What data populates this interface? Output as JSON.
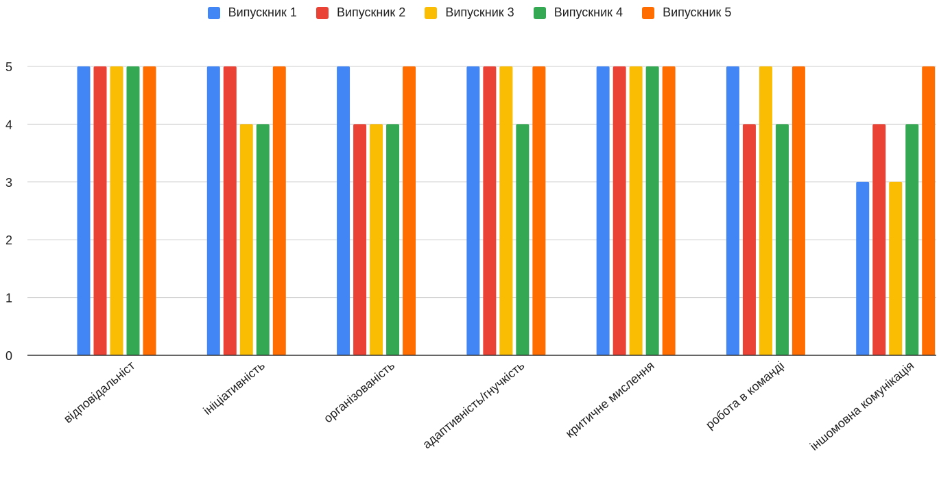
{
  "chart_data": {
    "type": "bar",
    "title": "",
    "xlabel": "",
    "ylabel": "",
    "ylim": [
      0,
      5
    ],
    "yticks": [
      0,
      1,
      2,
      3,
      4,
      5
    ],
    "grid": true,
    "legend_position": "top",
    "categories": [
      "відповідальніст",
      "ініціативність",
      "організованість",
      "адаптивність/гнучкість",
      "критичне мислення",
      "робота в команді",
      "іншомовна комунікація"
    ],
    "series": [
      {
        "name": "Випускник 1",
        "color": "#4285F4",
        "values": [
          5,
          5,
          5,
          5,
          5,
          5,
          3
        ]
      },
      {
        "name": "Випускник 2",
        "color": "#EA4335",
        "values": [
          5,
          5,
          4,
          5,
          5,
          4,
          4
        ]
      },
      {
        "name": "Випускник 3",
        "color": "#FBBC04",
        "values": [
          5,
          4,
          4,
          5,
          5,
          5,
          3
        ]
      },
      {
        "name": "Випускник 4",
        "color": "#34A853",
        "values": [
          5,
          4,
          4,
          4,
          5,
          4,
          4
        ]
      },
      {
        "name": "Випускник 5",
        "color": "#FF6D01",
        "values": [
          5,
          5,
          5,
          5,
          5,
          5,
          5
        ]
      }
    ]
  }
}
